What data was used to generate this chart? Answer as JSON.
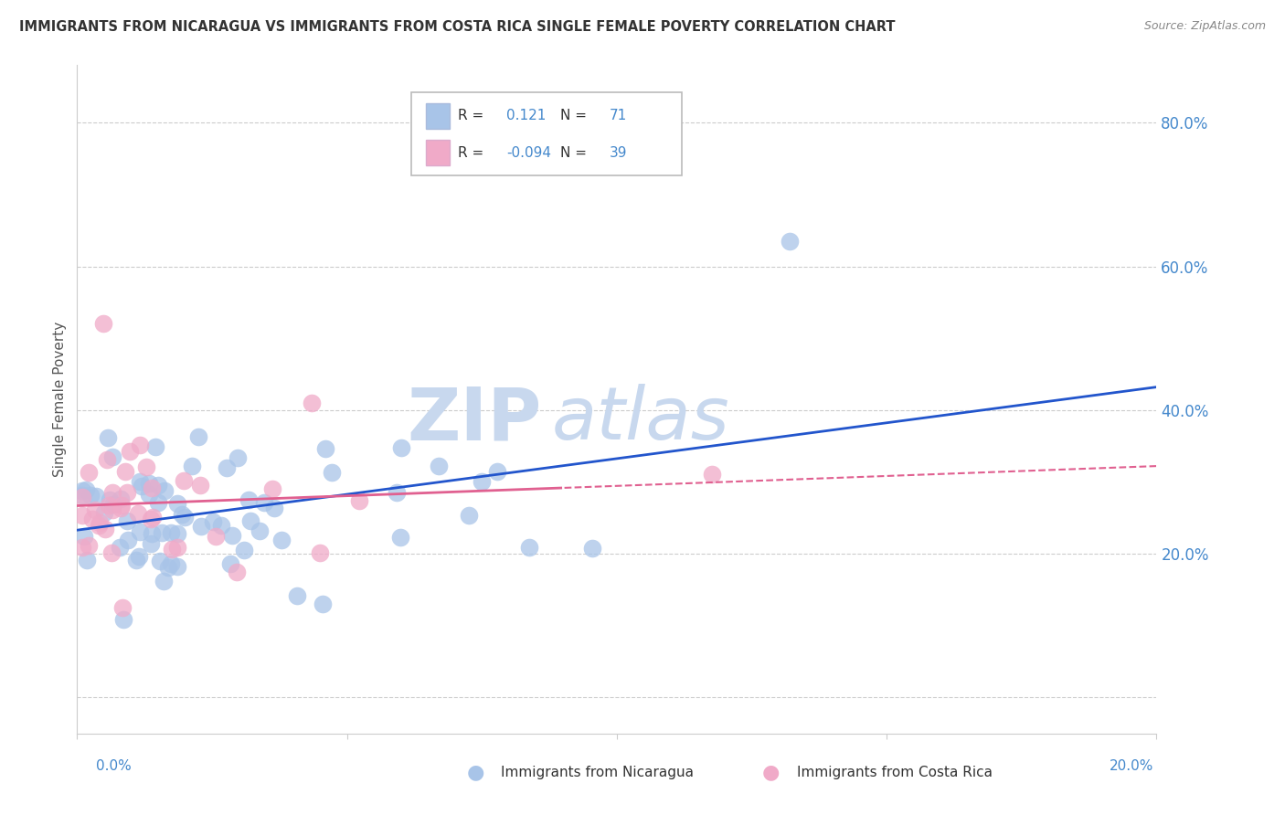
{
  "title": "IMMIGRANTS FROM NICARAGUA VS IMMIGRANTS FROM COSTA RICA SINGLE FEMALE POVERTY CORRELATION CHART",
  "source": "Source: ZipAtlas.com",
  "ylabel": "Single Female Poverty",
  "xlim": [
    0.0,
    0.2
  ],
  "ylim": [
    -0.05,
    0.88
  ],
  "series1_name": "Immigrants from Nicaragua",
  "series2_name": "Immigrants from Costa Rica",
  "series1_color": "#a8c4e8",
  "series2_color": "#f0aac8",
  "series1_line_color": "#2255cc",
  "series2_line_color": "#e06090",
  "R1": 0.121,
  "N1": 71,
  "R2": -0.094,
  "N2": 39,
  "watermark_zip": "ZIP",
  "watermark_atlas": "atlas",
  "watermark_color_zip": "#c8d8ee",
  "watermark_color_atlas": "#c8d8ee",
  "background_color": "#ffffff",
  "title_color": "#333333",
  "source_color": "#888888",
  "ytick_color": "#4488cc",
  "ytick_vals": [
    0.0,
    0.2,
    0.4,
    0.6,
    0.8
  ],
  "ytick_labels": [
    "",
    "20.0%",
    "40.0%",
    "60.0%",
    "80.0%"
  ],
  "grid_color": "#cccccc",
  "legend_text_color": "#333333",
  "legend_num_color": "#4488cc"
}
